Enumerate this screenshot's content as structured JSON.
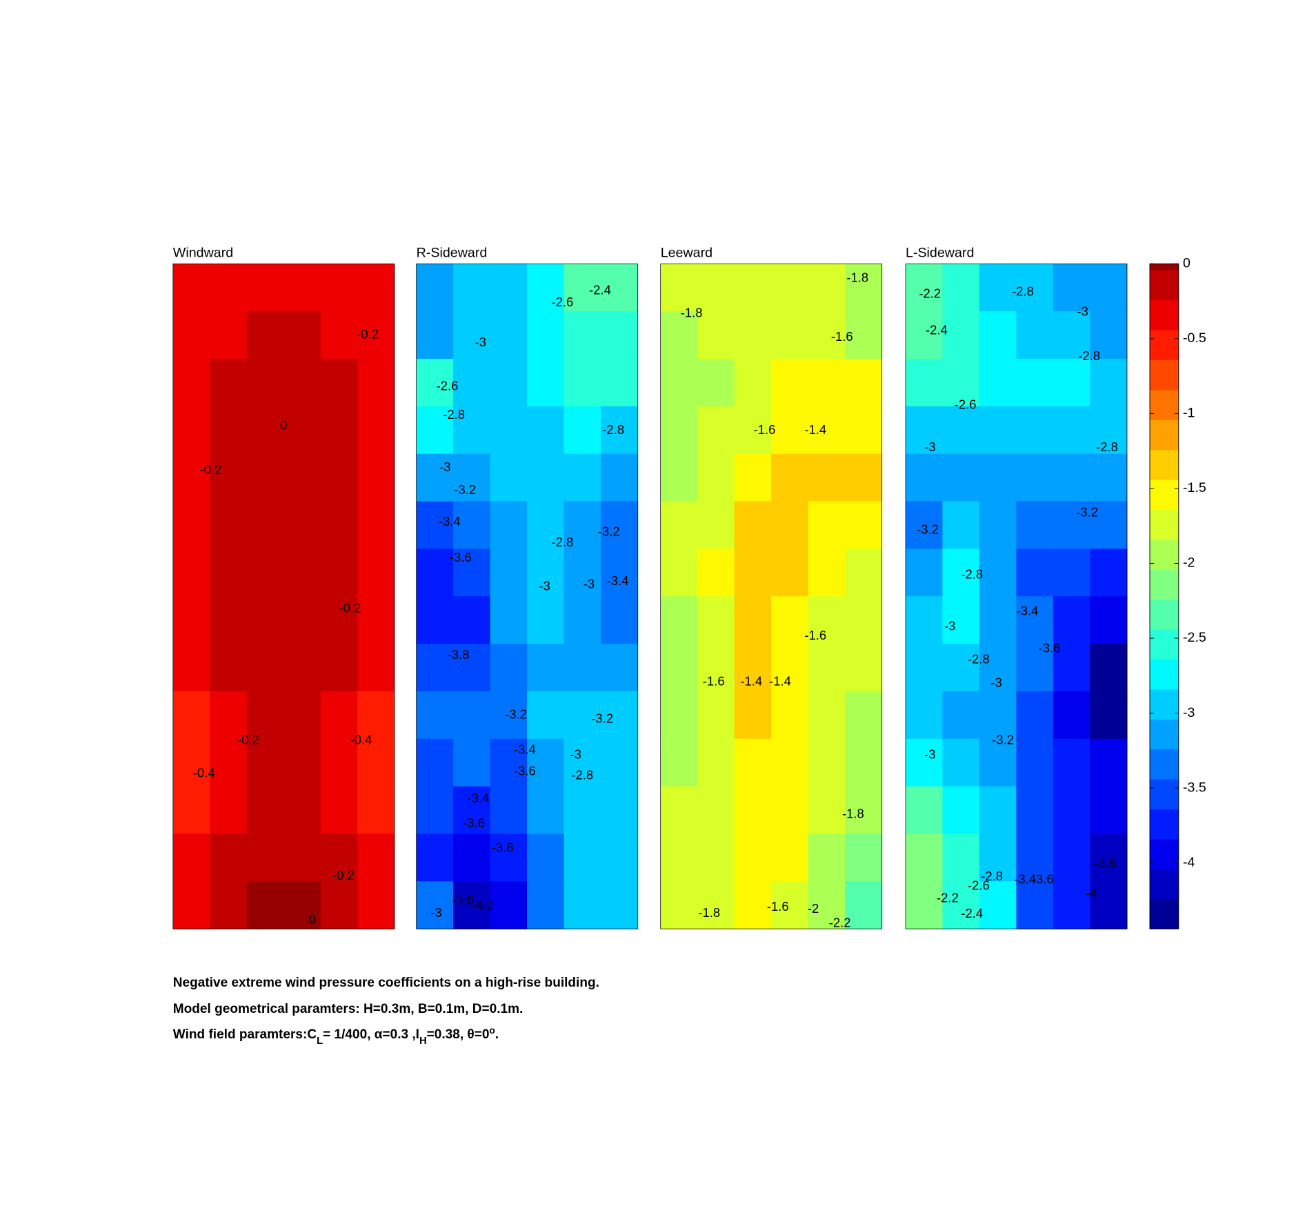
{
  "chart_data": [
    {
      "type": "contour",
      "title": "Windward",
      "z": [
        [
          -0.3,
          -0.3,
          -0.3,
          -0.3,
          -0.3,
          -0.3
        ],
        [
          -0.3,
          -0.25,
          -0.1,
          -0.1,
          -0.25,
          -0.3
        ],
        [
          -0.3,
          -0.1,
          -0.1,
          -0.1,
          -0.1,
          -0.3
        ],
        [
          -0.3,
          -0.1,
          -0.05,
          -0.05,
          -0.1,
          -0.3
        ],
        [
          -0.3,
          -0.1,
          -0.05,
          -0.05,
          -0.1,
          -0.3
        ],
        [
          -0.3,
          -0.1,
          -0.05,
          -0.05,
          -0.1,
          -0.3
        ],
        [
          -0.3,
          -0.1,
          -0.05,
          -0.05,
          -0.1,
          -0.3
        ],
        [
          -0.3,
          -0.1,
          -0.05,
          -0.05,
          -0.1,
          -0.3
        ],
        [
          -0.3,
          -0.15,
          -0.1,
          -0.1,
          -0.15,
          -0.3
        ],
        [
          -0.45,
          -0.3,
          -0.1,
          -0.1,
          -0.3,
          -0.45
        ],
        [
          -0.45,
          -0.3,
          -0.1,
          -0.1,
          -0.3,
          -0.45
        ],
        [
          -0.45,
          -0.3,
          -0.15,
          -0.15,
          -0.3,
          -0.45
        ],
        [
          -0.3,
          -0.15,
          -0.1,
          -0.1,
          -0.15,
          -0.3
        ],
        [
          -0.3,
          -0.1,
          -0.02,
          -0.02,
          -0.1,
          -0.3
        ]
      ],
      "contour_labels": [
        -0.2,
        0,
        -0.2,
        -0.2,
        -0.2,
        -0.4,
        -0.4,
        -0.2,
        0
      ]
    },
    {
      "type": "contour",
      "title": "R-Sideward",
      "z": [
        [
          -3.1,
          -3.0,
          -2.9,
          -2.7,
          -2.4,
          -2.3
        ],
        [
          -3.1,
          -3.0,
          -2.9,
          -2.7,
          -2.5,
          -2.5
        ],
        [
          -2.6,
          -3.0,
          -2.9,
          -2.8,
          -2.6,
          -2.6
        ],
        [
          -2.8,
          -2.9,
          -2.9,
          -2.9,
          -2.8,
          -2.9
        ],
        [
          -3.2,
          -3.1,
          -3.0,
          -2.9,
          -3.0,
          -3.2
        ],
        [
          -3.5,
          -3.4,
          -3.2,
          -2.9,
          -3.1,
          -3.3
        ],
        [
          -3.7,
          -3.6,
          -3.2,
          -2.9,
          -3.1,
          -3.4
        ],
        [
          -3.8,
          -3.7,
          -3.2,
          -3.0,
          -3.1,
          -3.3
        ],
        [
          -3.6,
          -3.5,
          -3.3,
          -3.1,
          -3.1,
          -3.2
        ],
        [
          -3.4,
          -3.4,
          -3.4,
          -3.0,
          -3.0,
          -3.0
        ],
        [
          -3.5,
          -3.3,
          -3.6,
          -3.1,
          -2.9,
          -2.9
        ],
        [
          -3.6,
          -3.7,
          -3.6,
          -3.2,
          -3.0,
          -2.9
        ],
        [
          -3.7,
          -3.9,
          -3.7,
          -3.3,
          -3.0,
          -2.9
        ],
        [
          -3.4,
          -4.2,
          -3.9,
          -3.3,
          -3.0,
          -2.9
        ]
      ],
      "contour_labels": [
        -2.4,
        -2.6,
        -3,
        -2.6,
        -2.8,
        -2.8,
        -3,
        -3.2,
        -3.4,
        -2.8,
        -3.2,
        -3.6,
        -3,
        -3,
        -3.4,
        -3.8,
        -3.2,
        -3.2,
        -3.4,
        -3,
        -3.6,
        -2.8,
        -3.4,
        -3.6,
        -3.8,
        -3.6,
        -4.2,
        -3
      ]
    },
    {
      "type": "contour",
      "title": "Leeward",
      "z": [
        [
          -1.7,
          -1.7,
          -1.7,
          -1.7,
          -1.8,
          -2.0
        ],
        [
          -2.0,
          -1.8,
          -1.7,
          -1.7,
          -1.7,
          -2.0
        ],
        [
          -2.0,
          -1.9,
          -1.7,
          -1.6,
          -1.6,
          -1.6
        ],
        [
          -1.9,
          -1.8,
          -1.7,
          -1.6,
          -1.5,
          -1.5
        ],
        [
          -2.0,
          -1.7,
          -1.5,
          -1.4,
          -1.4,
          -1.4
        ],
        [
          -1.8,
          -1.7,
          -1.4,
          -1.3,
          -1.5,
          -1.6
        ],
        [
          -1.8,
          -1.6,
          -1.4,
          -1.4,
          -1.6,
          -1.7
        ],
        [
          -1.9,
          -1.7,
          -1.4,
          -1.5,
          -1.7,
          -1.8
        ],
        [
          -1.9,
          -1.7,
          -1.4,
          -1.5,
          -1.7,
          -1.8
        ],
        [
          -2.0,
          -1.7,
          -1.4,
          -1.6,
          -1.8,
          -2.0
        ],
        [
          -2.0,
          -1.7,
          -1.5,
          -1.6,
          -1.8,
          -2.0
        ],
        [
          -1.8,
          -1.7,
          -1.6,
          -1.6,
          -1.8,
          -1.9
        ],
        [
          -1.8,
          -1.7,
          -1.6,
          -1.6,
          -1.9,
          -2.1
        ],
        [
          -1.8,
          -1.7,
          -1.6,
          -1.7,
          -2.0,
          -2.3
        ]
      ],
      "contour_labels": [
        -1.8,
        -1.8,
        -1.6,
        -1.6,
        -1.4,
        -1.6,
        -1.6,
        -1.4,
        -1.4,
        -1.8,
        -1.8,
        -1.6,
        -2,
        -2.2
      ]
    },
    {
      "type": "contour",
      "title": "L-Sideward",
      "z": [
        [
          -2.3,
          -2.5,
          -2.9,
          -2.9,
          -3.1,
          -3.2
        ],
        [
          -2.4,
          -2.5,
          -2.8,
          -2.9,
          -3.0,
          -3.1
        ],
        [
          -2.5,
          -2.6,
          -2.7,
          -2.8,
          -2.8,
          -2.9
        ],
        [
          -3.0,
          -3.0,
          -2.9,
          -2.9,
          -2.9,
          -2.9
        ],
        [
          -3.1,
          -3.2,
          -3.1,
          -3.1,
          -3.1,
          -3.1
        ],
        [
          -3.3,
          -3.0,
          -3.2,
          -3.3,
          -3.4,
          -3.4
        ],
        [
          -3.1,
          -2.8,
          -3.2,
          -3.5,
          -3.6,
          -3.7
        ],
        [
          -3.0,
          -2.8,
          -3.2,
          -3.4,
          -3.7,
          -3.9
        ],
        [
          -3.0,
          -3.0,
          -3.1,
          -3.4,
          -3.8,
          -4.3
        ],
        [
          -3.0,
          -3.1,
          -3.2,
          -3.5,
          -3.9,
          -4.4
        ],
        [
          -2.7,
          -2.9,
          -3.1,
          -3.5,
          -3.8,
          -4.0
        ],
        [
          -2.4,
          -2.7,
          -3.0,
          -3.5,
          -3.8,
          -4.0
        ],
        [
          -2.2,
          -2.5,
          -2.9,
          -3.5,
          -3.8,
          -4.1
        ],
        [
          -2.2,
          -2.5,
          -2.8,
          -3.5,
          -3.8,
          -4.1
        ]
      ],
      "contour_labels": [
        -2.2,
        -2.8,
        -3,
        -2.4,
        -2.8,
        -2.6,
        -3,
        -2.8,
        -3.2,
        -3.2,
        -2.8,
        -3.4,
        -3,
        -3.6,
        -2.8,
        -3,
        -3.2,
        -3,
        -3.8,
        -2.8,
        -3.4,
        -3.6,
        -2.6,
        -2.2,
        -4,
        -2.4
      ]
    }
  ],
  "colorbar": {
    "colormap": "jet",
    "level_step": 0.2,
    "ylim": [
      -4.44,
      0
    ],
    "yticks": [
      0,
      -0.5,
      -1,
      -1.5,
      -2,
      -2.5,
      -3,
      -3.5,
      -4
    ]
  },
  "caption": {
    "line1": "Negative extreme wind pressure coefficients on a high-rise building.",
    "line2": "Model geometrical paramters: H=0.3m, B=0.1m, D=0.1m.",
    "line3": [
      {
        "text": "Wind field paramters:C"
      },
      {
        "text": "L",
        "shift": "sub"
      },
      {
        "text": "= 1/400, α=0.3 ,I"
      },
      {
        "text": "H",
        "shift": "sub"
      },
      {
        "text": "=0.38, θ=0"
      },
      {
        "text": "o",
        "shift": "sup"
      },
      {
        "text": "."
      }
    ]
  }
}
